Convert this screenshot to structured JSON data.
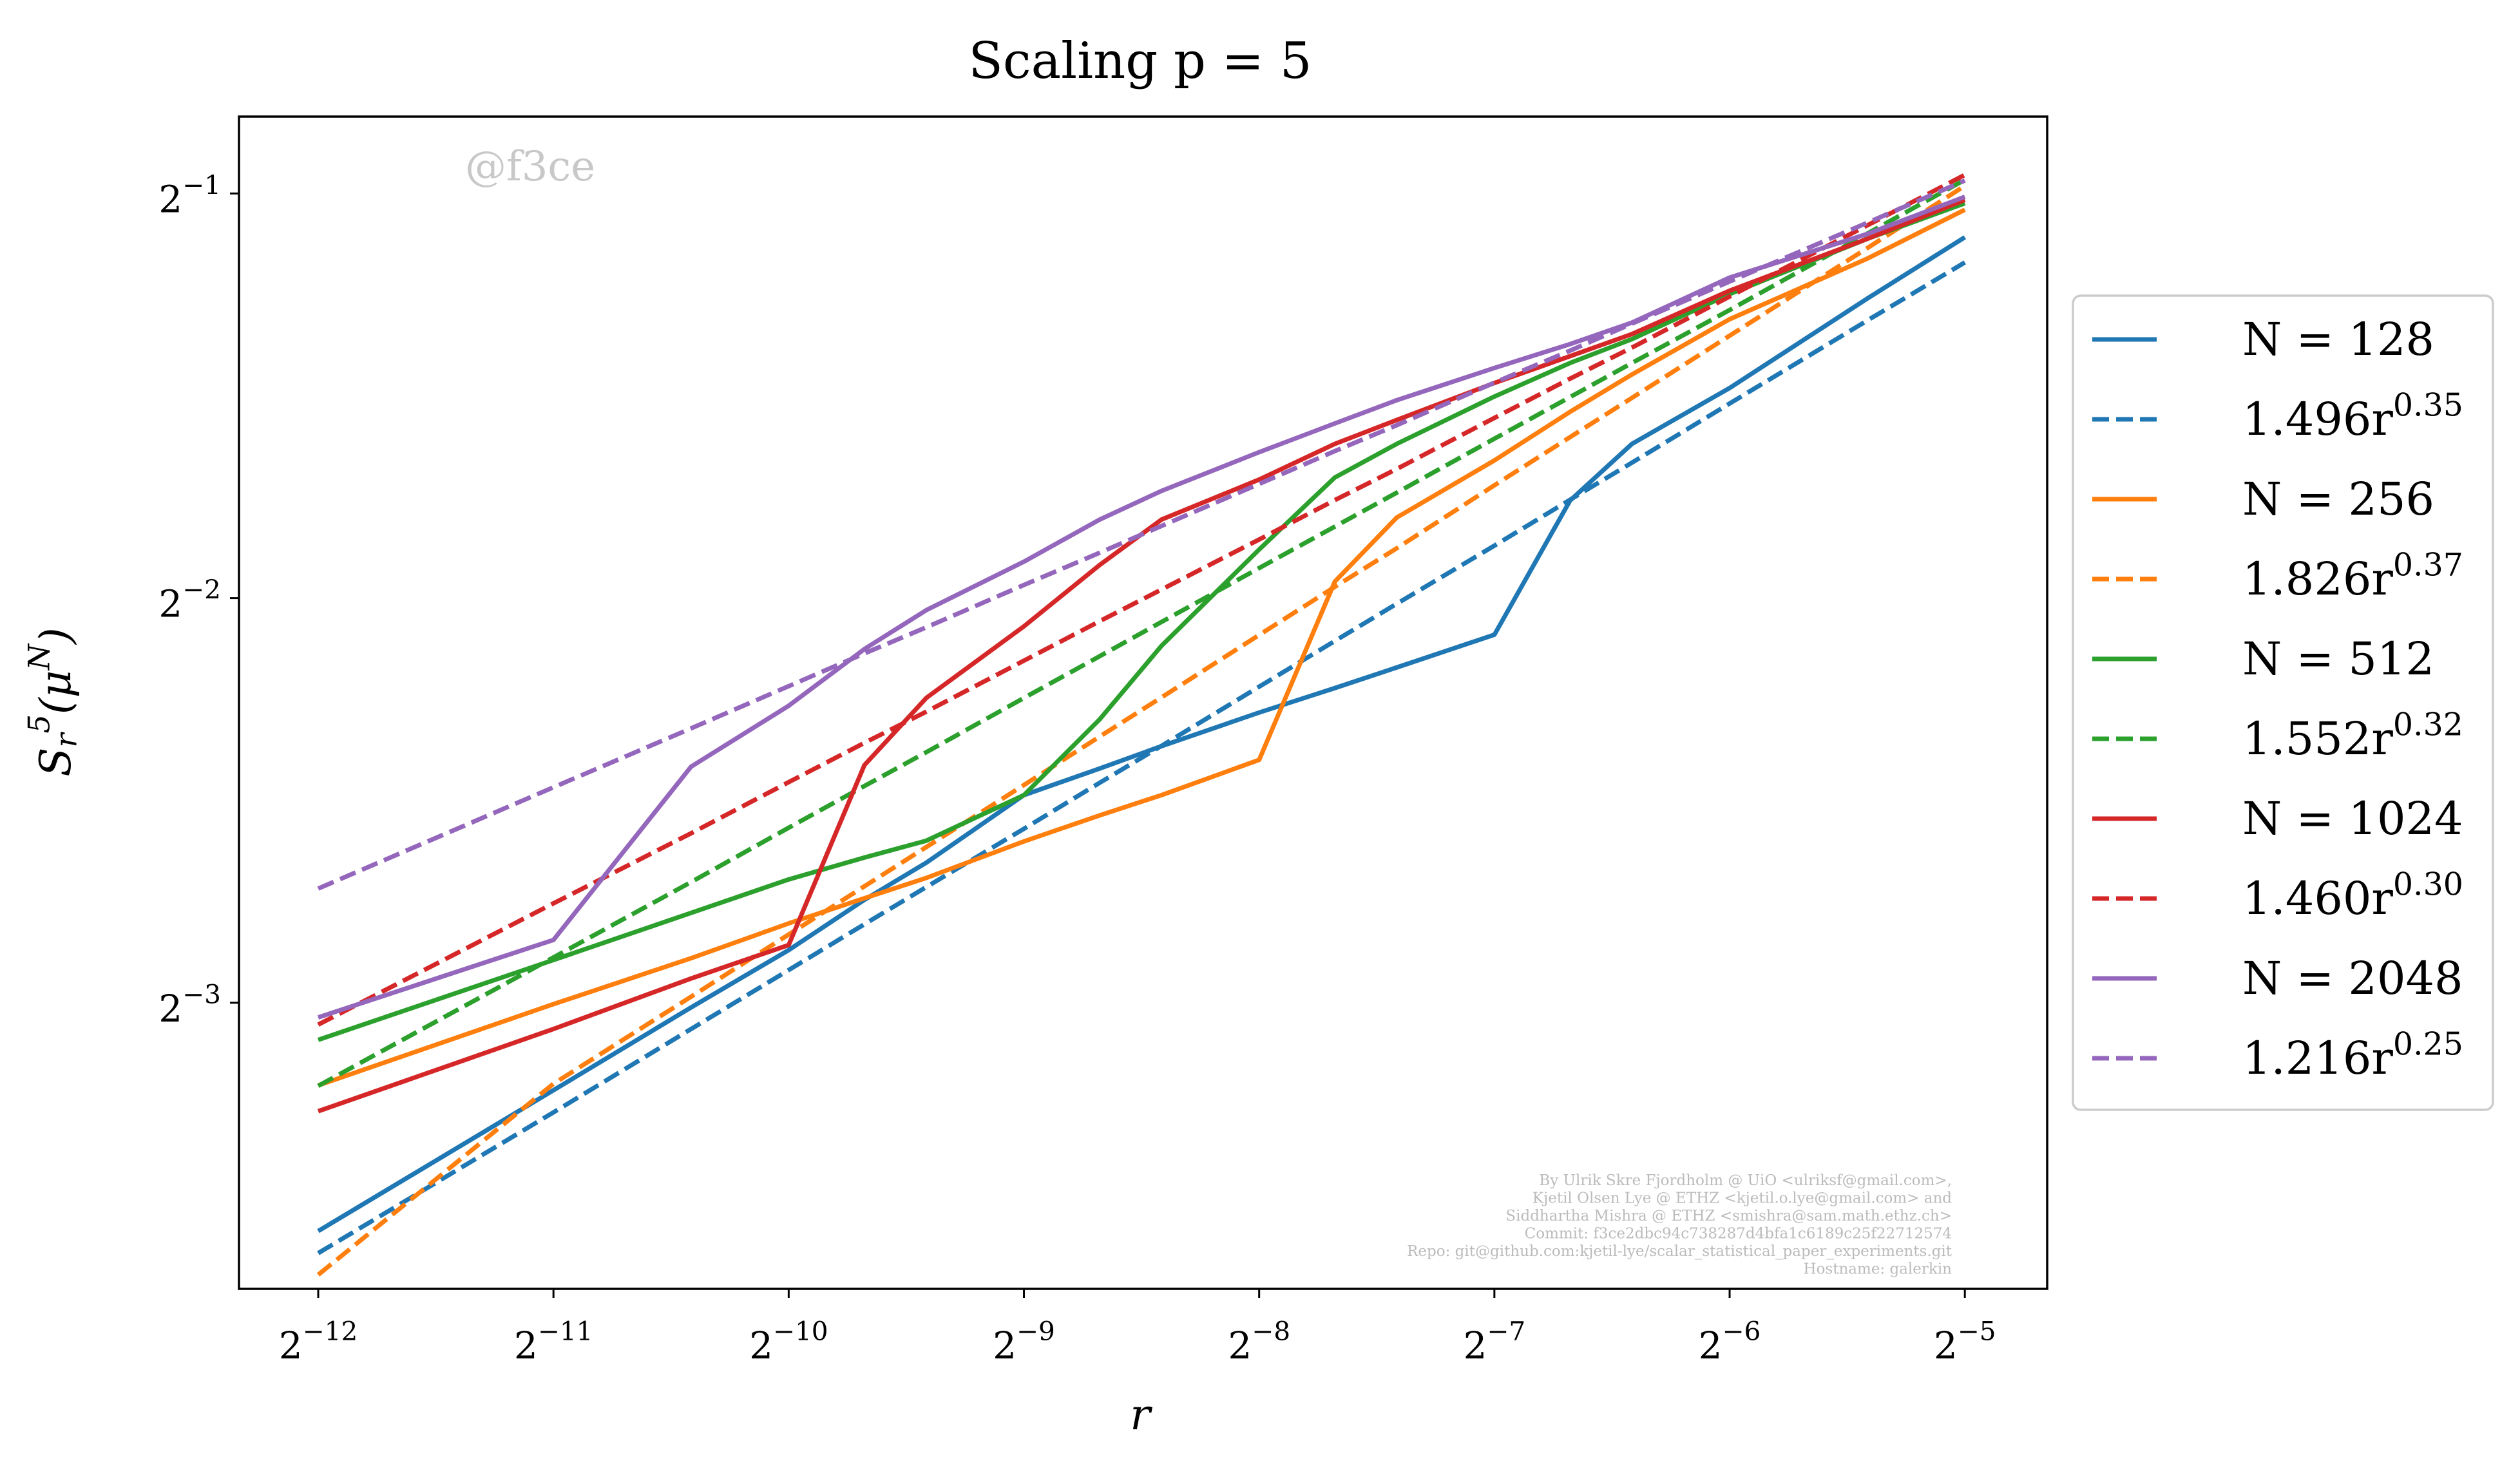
{
  "chart_data": {
    "type": "line",
    "title": "Scaling p = 5",
    "xlabel": "r",
    "ylabel": "S_{r}^{5}(μ^{N})",
    "xscale": "log",
    "yscale": "log",
    "xlim": [
      0.0001933,
      0.03983
    ],
    "ylim": [
      0.07657,
      0.5704
    ],
    "xticks": [
      {
        "value": 0.000244140625,
        "label": "2^{−12}"
      },
      {
        "value": 0.00048828125,
        "label": "2^{−11}"
      },
      {
        "value": 0.0009765625,
        "label": "2^{−10}"
      },
      {
        "value": 0.001953125,
        "label": "2^{−9}"
      },
      {
        "value": 0.00390625,
        "label": "2^{−8}"
      },
      {
        "value": 0.0078125,
        "label": "2^{−7}"
      },
      {
        "value": 0.015625,
        "label": "2^{−6}"
      },
      {
        "value": 0.03125,
        "label": "2^{−5}"
      }
    ],
    "yticks": [
      {
        "value": 0.125,
        "label": "2^{−3}"
      },
      {
        "value": 0.25,
        "label": "2^{−2}"
      },
      {
        "value": 0.5,
        "label": "2^{−1}"
      }
    ],
    "grid": false,
    "legend_position": "right",
    "x": [
      0.000244140625,
      0.00048828125,
      0.000732421875,
      0.0009765625,
      0.001220703125,
      0.00146484375,
      0.001953125,
      0.00244140625,
      0.0029296875,
      0.00390625,
      0.0048828125,
      0.005859375,
      0.0078125,
      0.009765625,
      0.01171875,
      0.015625,
      0.0234375,
      0.03125
    ],
    "series": [
      {
        "name": "N = 128",
        "color": "#1f77b4",
        "linestyle": "solid",
        "values": [
          0.08454,
          0.1076,
          0.124,
          0.1368,
          0.1491,
          0.1589,
          0.1784,
          0.1867,
          0.194,
          0.2055,
          0.2143,
          0.222,
          0.2348,
          0.2955,
          0.3256,
          0.3583,
          0.4176,
          0.4639
        ]
      },
      {
        "name": "1.496r^{0.35}",
        "color": "#1f77b4",
        "linestyle": "dashed",
        "values": [
          0.0814,
          0.1036,
          0.1195,
          0.1322,
          0.143,
          0.1524,
          0.1684,
          0.1822,
          0.1941,
          0.2148,
          0.2323,
          0.2476,
          0.2735,
          0.2959,
          0.3153,
          0.3489,
          0.4022,
          0.4443
        ]
      },
      {
        "name": "N = 256",
        "color": "#ff7f0e",
        "linestyle": "solid",
        "values": [
          0.1085,
          0.1247,
          0.1349,
          0.1432,
          0.1495,
          0.1548,
          0.1648,
          0.1723,
          0.1784,
          0.1895,
          0.2572,
          0.287,
          0.3165,
          0.344,
          0.3667,
          0.4031,
          0.4472,
          0.4863
        ]
      },
      {
        "name": "1.826r^{0.37}",
        "color": "#ff7f0e",
        "linestyle": "dashed",
        "values": [
          0.07844,
          0.1088,
          0.1263,
          0.1405,
          0.1526,
          0.1632,
          0.1815,
          0.1972,
          0.2109,
          0.2347,
          0.2549,
          0.2723,
          0.3033,
          0.3294,
          0.3523,
          0.3919,
          0.4553,
          0.5066
        ]
      },
      {
        "name": "N = 512",
        "color": "#2ca02c",
        "linestyle": "solid",
        "values": [
          0.1173,
          0.1345,
          0.1458,
          0.1544,
          0.1603,
          0.165,
          0.1784,
          0.2031,
          0.2304,
          0.2717,
          0.3074,
          0.3256,
          0.3531,
          0.374,
          0.3896,
          0.4209,
          0.4626,
          0.4917
        ]
      },
      {
        "name": "1.552r^{0.32}",
        "color": "#2ca02c",
        "linestyle": "dashed",
        "values": [
          0.1084,
          0.1351,
          0.1537,
          0.1687,
          0.1812,
          0.192,
          0.2107,
          0.2263,
          0.24,
          0.2632,
          0.2826,
          0.2995,
          0.3285,
          0.3528,
          0.374,
          0.4095,
          0.4668,
          0.5119
        ]
      },
      {
        "name": "N = 1024",
        "color": "#d62728",
        "linestyle": "solid",
        "values": [
          0.1038,
          0.1195,
          0.1303,
          0.138,
          0.1878,
          0.2107,
          0.2382,
          0.2646,
          0.286,
          0.3063,
          0.3256,
          0.3392,
          0.3614,
          0.3784,
          0.393,
          0.4233,
          0.4626,
          0.4945
        ]
      },
      {
        "name": "1.460r^{0.30}",
        "color": "#d62728",
        "linestyle": "dashed",
        "values": [
          0.1204,
          0.1482,
          0.1671,
          0.1824,
          0.1951,
          0.2058,
          0.2246,
          0.2403,
          0.2537,
          0.2764,
          0.2957,
          0.3119,
          0.3404,
          0.3641,
          0.384,
          0.4191,
          0.4734,
          0.5162
        ]
      },
      {
        "name": "N = 2048",
        "color": "#9467bd",
        "linestyle": "solid",
        "values": [
          0.1219,
          0.1392,
          0.1873,
          0.2079,
          0.2291,
          0.2449,
          0.2661,
          0.286,
          0.3004,
          0.321,
          0.3372,
          0.3509,
          0.3708,
          0.3863,
          0.4008,
          0.4329,
          0.4665,
          0.4972
        ]
      },
      {
        "name": "1.216r^{0.25}",
        "color": "#9467bd",
        "linestyle": "dashed",
        "values": [
          0.152,
          0.1808,
          0.2,
          0.215,
          0.2274,
          0.2378,
          0.2557,
          0.2702,
          0.2829,
          0.304,
          0.3216,
          0.3362,
          0.3616,
          0.382,
          0.4001,
          0.43,
          0.4755,
          0.5112
        ]
      }
    ],
    "annotations": {
      "watermark": "@f3ce",
      "credits": [
        "By Ulrik Skre Fjordholm @ UiO <ulriksf@gmail.com>,",
        "Kjetil Olsen Lye @ ETHZ <kjetil.o.lye@gmail.com> and",
        "Siddhartha Mishra @ ETHZ <smishra@sam.math.ethz.ch>",
        "Commit: f3ce2dbc94c738287d4bfa1c6189c25f22712574",
        "Repo: git@github.com:kjetil-lye/scalar_statistical_paper_experiments.git",
        "Hostname: galerkin"
      ]
    }
  }
}
